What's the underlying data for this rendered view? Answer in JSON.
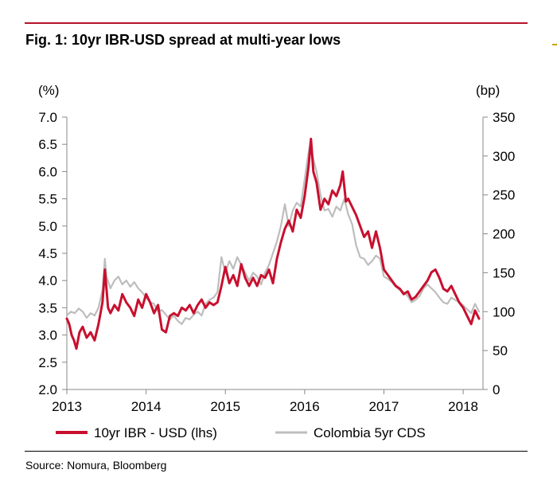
{
  "figure": {
    "title": "Fig. 1: 10yr IBR-USD spread at multi-year lows",
    "source": "Source: Nomura, Bloomberg"
  },
  "chart_data": {
    "type": "line",
    "title": "Fig. 1: 10yr IBR-USD spread at multi-year lows",
    "left_axis_unit": "(%)",
    "right_axis_unit": "(bp)",
    "y_left": {
      "lim": [
        2.0,
        7.0
      ],
      "ticks": [
        "2.0",
        "2.5",
        "3.0",
        "3.5",
        "4.0",
        "4.5",
        "5.0",
        "5.5",
        "6.0",
        "6.5",
        "7.0"
      ]
    },
    "y_right": {
      "lim": [
        0,
        350
      ],
      "ticks": [
        "0",
        "50",
        "100",
        "150",
        "200",
        "250",
        "300",
        "350"
      ]
    },
    "x": {
      "lim": [
        2013.0,
        2018.25
      ],
      "ticks": [
        "2013",
        "2014",
        "2015",
        "2016",
        "2017",
        "2018"
      ]
    },
    "grid": false,
    "legend_position": "bottom",
    "series": [
      {
        "name": "Colombia 5yr CDS",
        "axis": "right",
        "color": "#bdbdbd",
        "points": [
          [
            2013.0,
            95
          ],
          [
            2013.05,
            100
          ],
          [
            2013.1,
            98
          ],
          [
            2013.15,
            104
          ],
          [
            2013.2,
            100
          ],
          [
            2013.25,
            92
          ],
          [
            2013.3,
            98
          ],
          [
            2013.35,
            95
          ],
          [
            2013.4,
            105
          ],
          [
            2013.45,
            128
          ],
          [
            2013.48,
            168
          ],
          [
            2013.5,
            145
          ],
          [
            2013.55,
            130
          ],
          [
            2013.6,
            140
          ],
          [
            2013.65,
            145
          ],
          [
            2013.7,
            135
          ],
          [
            2013.75,
            140
          ],
          [
            2013.8,
            132
          ],
          [
            2013.85,
            138
          ],
          [
            2013.9,
            130
          ],
          [
            2013.95,
            125
          ],
          [
            2014.0,
            118
          ],
          [
            2014.05,
            112
          ],
          [
            2014.1,
            110
          ],
          [
            2014.15,
            100
          ],
          [
            2014.2,
            102
          ],
          [
            2014.25,
            96
          ],
          [
            2014.3,
            90
          ],
          [
            2014.35,
            95
          ],
          [
            2014.4,
            88
          ],
          [
            2014.45,
            84
          ],
          [
            2014.5,
            92
          ],
          [
            2014.55,
            90
          ],
          [
            2014.6,
            96
          ],
          [
            2014.65,
            100
          ],
          [
            2014.7,
            95
          ],
          [
            2014.75,
            110
          ],
          [
            2014.8,
            115
          ],
          [
            2014.85,
            118
          ],
          [
            2014.9,
            125
          ],
          [
            2014.95,
            170
          ],
          [
            2015.0,
            150
          ],
          [
            2015.05,
            165
          ],
          [
            2015.1,
            155
          ],
          [
            2015.15,
            170
          ],
          [
            2015.2,
            160
          ],
          [
            2015.25,
            150
          ],
          [
            2015.3,
            140
          ],
          [
            2015.35,
            150
          ],
          [
            2015.4,
            145
          ],
          [
            2015.45,
            135
          ],
          [
            2015.5,
            150
          ],
          [
            2015.55,
            160
          ],
          [
            2015.6,
            175
          ],
          [
            2015.65,
            190
          ],
          [
            2015.7,
            210
          ],
          [
            2015.75,
            238
          ],
          [
            2015.8,
            210
          ],
          [
            2015.85,
            230
          ],
          [
            2015.9,
            240
          ],
          [
            2015.95,
            235
          ],
          [
            2016.0,
            270
          ],
          [
            2016.05,
            305
          ],
          [
            2016.08,
            320
          ],
          [
            2016.1,
            300
          ],
          [
            2016.15,
            280
          ],
          [
            2016.2,
            250
          ],
          [
            2016.25,
            230
          ],
          [
            2016.3,
            232
          ],
          [
            2016.35,
            222
          ],
          [
            2016.4,
            235
          ],
          [
            2016.45,
            230
          ],
          [
            2016.5,
            245
          ],
          [
            2016.55,
            225
          ],
          [
            2016.6,
            212
          ],
          [
            2016.65,
            185
          ],
          [
            2016.7,
            170
          ],
          [
            2016.75,
            168
          ],
          [
            2016.8,
            160
          ],
          [
            2016.85,
            165
          ],
          [
            2016.9,
            172
          ],
          [
            2016.95,
            168
          ],
          [
            2017.0,
            145
          ],
          [
            2017.05,
            142
          ],
          [
            2017.1,
            138
          ],
          [
            2017.15,
            132
          ],
          [
            2017.2,
            128
          ],
          [
            2017.25,
            125
          ],
          [
            2017.3,
            120
          ],
          [
            2017.35,
            112
          ],
          [
            2017.4,
            115
          ],
          [
            2017.45,
            120
          ],
          [
            2017.5,
            130
          ],
          [
            2017.55,
            135
          ],
          [
            2017.6,
            130
          ],
          [
            2017.65,
            125
          ],
          [
            2017.7,
            118
          ],
          [
            2017.75,
            112
          ],
          [
            2017.8,
            110
          ],
          [
            2017.85,
            118
          ],
          [
            2017.9,
            115
          ],
          [
            2017.95,
            112
          ],
          [
            2018.0,
            108
          ],
          [
            2018.05,
            103
          ],
          [
            2018.1,
            98
          ],
          [
            2018.15,
            110
          ],
          [
            2018.2,
            100
          ]
        ]
      },
      {
        "name": "10yr IBR - USD (lhs)",
        "axis": "left",
        "color": "#c8102e",
        "points": [
          [
            2013.0,
            3.3
          ],
          [
            2013.03,
            3.2
          ],
          [
            2013.06,
            3.0
          ],
          [
            2013.09,
            2.9
          ],
          [
            2013.12,
            2.75
          ],
          [
            2013.16,
            3.05
          ],
          [
            2013.2,
            3.15
          ],
          [
            2013.25,
            2.95
          ],
          [
            2013.3,
            3.05
          ],
          [
            2013.35,
            2.9
          ],
          [
            2013.4,
            3.2
          ],
          [
            2013.45,
            3.6
          ],
          [
            2013.48,
            4.2
          ],
          [
            2013.52,
            3.5
          ],
          [
            2013.55,
            3.4
          ],
          [
            2013.6,
            3.55
          ],
          [
            2013.65,
            3.45
          ],
          [
            2013.7,
            3.75
          ],
          [
            2013.75,
            3.6
          ],
          [
            2013.8,
            3.5
          ],
          [
            2013.85,
            3.35
          ],
          [
            2013.9,
            3.65
          ],
          [
            2013.95,
            3.5
          ],
          [
            2014.0,
            3.75
          ],
          [
            2014.05,
            3.6
          ],
          [
            2014.1,
            3.4
          ],
          [
            2014.15,
            3.55
          ],
          [
            2014.2,
            3.1
          ],
          [
            2014.25,
            3.05
          ],
          [
            2014.3,
            3.35
          ],
          [
            2014.35,
            3.4
          ],
          [
            2014.4,
            3.35
          ],
          [
            2014.45,
            3.5
          ],
          [
            2014.5,
            3.45
          ],
          [
            2014.55,
            3.55
          ],
          [
            2014.6,
            3.4
          ],
          [
            2014.65,
            3.55
          ],
          [
            2014.7,
            3.65
          ],
          [
            2014.75,
            3.5
          ],
          [
            2014.8,
            3.6
          ],
          [
            2014.85,
            3.55
          ],
          [
            2014.9,
            3.6
          ],
          [
            2014.95,
            3.9
          ],
          [
            2015.0,
            4.25
          ],
          [
            2015.05,
            3.95
          ],
          [
            2015.1,
            4.1
          ],
          [
            2015.15,
            3.9
          ],
          [
            2015.2,
            4.3
          ],
          [
            2015.25,
            4.05
          ],
          [
            2015.3,
            3.9
          ],
          [
            2015.35,
            4.05
          ],
          [
            2015.4,
            3.9
          ],
          [
            2015.45,
            4.1
          ],
          [
            2015.5,
            4.05
          ],
          [
            2015.55,
            4.2
          ],
          [
            2015.6,
            3.95
          ],
          [
            2015.65,
            4.4
          ],
          [
            2015.7,
            4.7
          ],
          [
            2015.75,
            4.95
          ],
          [
            2015.8,
            5.1
          ],
          [
            2015.85,
            4.9
          ],
          [
            2015.9,
            5.3
          ],
          [
            2015.95,
            5.15
          ],
          [
            2016.0,
            5.55
          ],
          [
            2016.05,
            6.1
          ],
          [
            2016.08,
            6.6
          ],
          [
            2016.11,
            6.0
          ],
          [
            2016.15,
            5.8
          ],
          [
            2016.2,
            5.3
          ],
          [
            2016.25,
            5.5
          ],
          [
            2016.3,
            5.4
          ],
          [
            2016.35,
            5.65
          ],
          [
            2016.4,
            5.55
          ],
          [
            2016.45,
            5.75
          ],
          [
            2016.48,
            6.0
          ],
          [
            2016.52,
            5.45
          ],
          [
            2016.55,
            5.5
          ],
          [
            2016.6,
            5.35
          ],
          [
            2016.65,
            5.2
          ],
          [
            2016.7,
            5.0
          ],
          [
            2016.75,
            4.8
          ],
          [
            2016.8,
            4.9
          ],
          [
            2016.85,
            4.6
          ],
          [
            2016.9,
            4.9
          ],
          [
            2016.95,
            4.6
          ],
          [
            2017.0,
            4.2
          ],
          [
            2017.05,
            4.1
          ],
          [
            2017.1,
            4.0
          ],
          [
            2017.15,
            3.9
          ],
          [
            2017.2,
            3.85
          ],
          [
            2017.25,
            3.75
          ],
          [
            2017.3,
            3.8
          ],
          [
            2017.35,
            3.65
          ],
          [
            2017.4,
            3.7
          ],
          [
            2017.45,
            3.8
          ],
          [
            2017.5,
            3.9
          ],
          [
            2017.55,
            4.0
          ],
          [
            2017.6,
            4.15
          ],
          [
            2017.65,
            4.2
          ],
          [
            2017.7,
            4.05
          ],
          [
            2017.75,
            3.85
          ],
          [
            2017.8,
            3.8
          ],
          [
            2017.85,
            3.9
          ],
          [
            2017.9,
            3.75
          ],
          [
            2017.95,
            3.6
          ],
          [
            2018.0,
            3.5
          ],
          [
            2018.05,
            3.35
          ],
          [
            2018.1,
            3.2
          ],
          [
            2018.15,
            3.45
          ],
          [
            2018.2,
            3.3
          ]
        ]
      }
    ]
  }
}
